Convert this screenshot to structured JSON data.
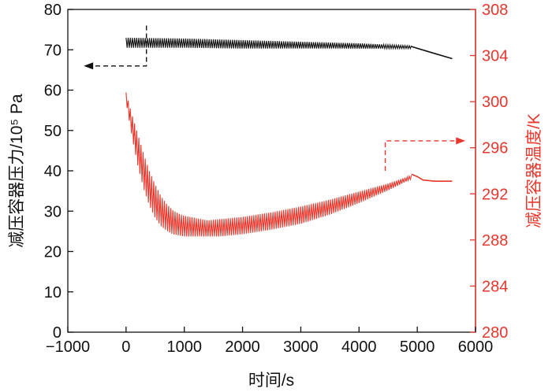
{
  "chart_data": {
    "type": "line",
    "title": "",
    "xlabel": "时间/s",
    "ylabel_left": "减压容器压力/10⁵ Pa",
    "ylabel_right": "减压容器温度/K",
    "xlim": [
      -1000,
      6000
    ],
    "ylim_left": [
      0,
      80
    ],
    "ylim_right": [
      280,
      308
    ],
    "x_ticks": [
      "−1000",
      "0",
      "1000",
      "2000",
      "3000",
      "4000",
      "5000",
      "6000"
    ],
    "y_left_ticks": [
      "0",
      "10",
      "20",
      "30",
      "40",
      "50",
      "60",
      "70",
      "80"
    ],
    "y_right_ticks": [
      "280",
      "284",
      "288",
      "292",
      "296",
      "300",
      "304",
      "308"
    ],
    "grid": false,
    "legend": "none",
    "colors": {
      "pressure": "#111111",
      "temperature": "#e8372c",
      "axis_left": "#111111",
      "axis_right": "#e8372c"
    },
    "series": [
      {
        "axis": "left",
        "color": "#111111",
        "band": true,
        "x": [
          0,
          1000,
          2000,
          3000,
          4000,
          4900
        ],
        "upper": [
          73.0,
          72.8,
          72.4,
          72.0,
          71.6,
          71.0
        ],
        "lower": [
          70.5,
          70.5,
          70.3,
          70.3,
          70.3,
          70.3
        ],
        "tail": {
          "x": [
            4900,
            5200,
            5600
          ],
          "y": [
            70.8,
            69.5,
            67.8
          ]
        }
      },
      {
        "axis": "right",
        "color": "#e8372c",
        "band": true,
        "x": [
          0,
          100,
          200,
          300,
          400,
          500,
          600,
          700,
          800,
          900,
          1000,
          1200,
          1400,
          1600,
          1800,
          2000,
          2500,
          3000,
          3500,
          4000,
          4500,
          4900
        ],
        "upper": [
          300.8,
          298.9,
          297.2,
          295.5,
          294.0,
          292.8,
          291.8,
          291.1,
          290.6,
          290.3,
          290.1,
          289.9,
          289.7,
          289.8,
          289.9,
          290.0,
          290.4,
          290.9,
          291.5,
          292.2,
          292.9,
          293.6
        ],
        "lower": [
          300.0,
          297.0,
          294.5,
          292.5,
          291.0,
          289.9,
          289.2,
          288.8,
          288.5,
          288.4,
          288.3,
          288.3,
          288.3,
          288.3,
          288.4,
          288.5,
          288.9,
          289.4,
          290.2,
          291.2,
          292.3,
          293.3
        ],
        "tail": {
          "x": [
            4900,
            5000,
            5100,
            5300,
            5600
          ],
          "y": [
            293.7,
            293.5,
            293.2,
            293.1,
            293.1
          ]
        }
      }
    ],
    "annotations": [
      {
        "type": "arrow",
        "direction": "left",
        "style": "dashed",
        "color": "#111111",
        "points": [
          [
            350,
            76
          ],
          [
            350,
            66
          ],
          [
            -700,
            66
          ]
        ]
      },
      {
        "type": "arrow",
        "direction": "right",
        "style": "dashed",
        "color": "#e8372c",
        "points": [
          [
            4450,
            294
          ],
          [
            4450,
            296.6
          ],
          [
            5800,
            296.6
          ]
        ]
      }
    ]
  }
}
